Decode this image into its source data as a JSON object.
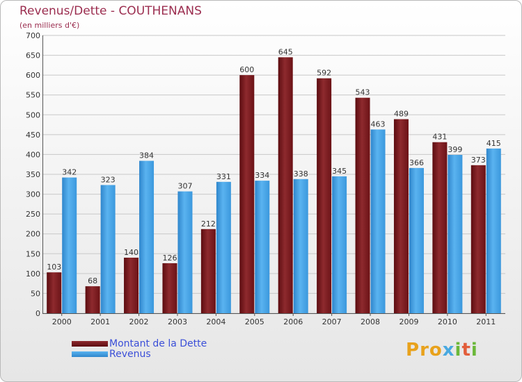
{
  "chart_data": {
    "type": "bar",
    "title": "Revenus/Dette - COUTHENANS",
    "subtitle": "(en milliers d'€)",
    "categories": [
      "2000",
      "2001",
      "2002",
      "2003",
      "2004",
      "2005",
      "2006",
      "2007",
      "2008",
      "2009",
      "2010",
      "2011"
    ],
    "series": [
      {
        "name": "Montant de la Dette",
        "color": "#7a1419",
        "values": [
          103,
          68,
          140,
          126,
          212,
          600,
          645,
          592,
          543,
          489,
          431,
          373
        ]
      },
      {
        "name": "Revenus",
        "color": "#3f9fe6",
        "values": [
          342,
          323,
          384,
          307,
          331,
          334,
          338,
          345,
          463,
          366,
          399,
          415
        ]
      }
    ],
    "ylim": [
      0,
      700
    ],
    "yticks": [
      0,
      50,
      100,
      150,
      200,
      250,
      300,
      350,
      400,
      450,
      500,
      550,
      600,
      650,
      700
    ],
    "grid": true,
    "legend_position": "bottom-left"
  },
  "logo": {
    "letters": [
      {
        "char": "P",
        "color": "#e8a21c"
      },
      {
        "char": "r",
        "color": "#e8a21c"
      },
      {
        "char": "o",
        "color": "#e8a21c"
      },
      {
        "char": "x",
        "color": "#49a9e0"
      },
      {
        "char": "i",
        "color": "#6bb83a"
      },
      {
        "char": "t",
        "color": "#e25d3b"
      },
      {
        "char": "i",
        "color": "#6bb83a"
      }
    ]
  }
}
